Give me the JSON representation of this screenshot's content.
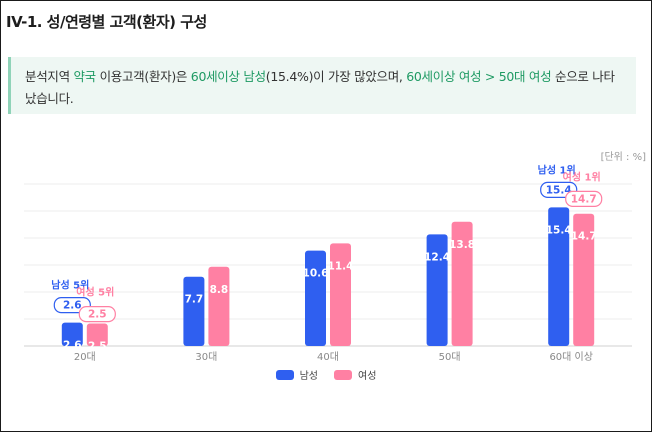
{
  "title": "IV-1. 성/연령별 고객(환자) 구성",
  "summary": {
    "parts": [
      {
        "text": "분석지역 ",
        "hl": false
      },
      {
        "text": "약국",
        "hl": true
      },
      {
        "text": " 이용고객(환자)은 ",
        "hl": false
      },
      {
        "text": "60세이상 남성",
        "hl": true
      },
      {
        "text": "(15.4%)이 가장 많았으며, ",
        "hl": false
      },
      {
        "text": "60세이상 여성 > 50대 여성",
        "hl": true
      },
      {
        "text": " 순으로 나타났습니다.",
        "hl": false
      }
    ]
  },
  "unit_label": "[단위 : %]",
  "colors": {
    "male": "#2f5ff0",
    "female": "#ff80a3",
    "highlight": "#1e9a63"
  },
  "chart_data": {
    "type": "bar",
    "categories": [
      "20대",
      "30대",
      "40대",
      "50대",
      "60대 이상"
    ],
    "series": [
      {
        "name": "남성",
        "values": [
          2.6,
          7.7,
          10.6,
          12.4,
          15.4
        ]
      },
      {
        "name": "여성",
        "values": [
          2.5,
          8.8,
          11.4,
          13.8,
          14.7
        ]
      }
    ],
    "ylim": [
      0,
      18
    ],
    "grid": true,
    "legend": "bottom-center",
    "annotations": [
      {
        "category": "20대",
        "series": "남성",
        "label": "남성 5위",
        "value": "2.6"
      },
      {
        "category": "20대",
        "series": "여성",
        "label": "여성 5위",
        "value": "2.5"
      },
      {
        "category": "60대 이상",
        "series": "남성",
        "label": "남성 1위",
        "value": "15.4"
      },
      {
        "category": "60대 이상",
        "series": "여성",
        "label": "여성 1위",
        "value": "14.7"
      }
    ]
  }
}
